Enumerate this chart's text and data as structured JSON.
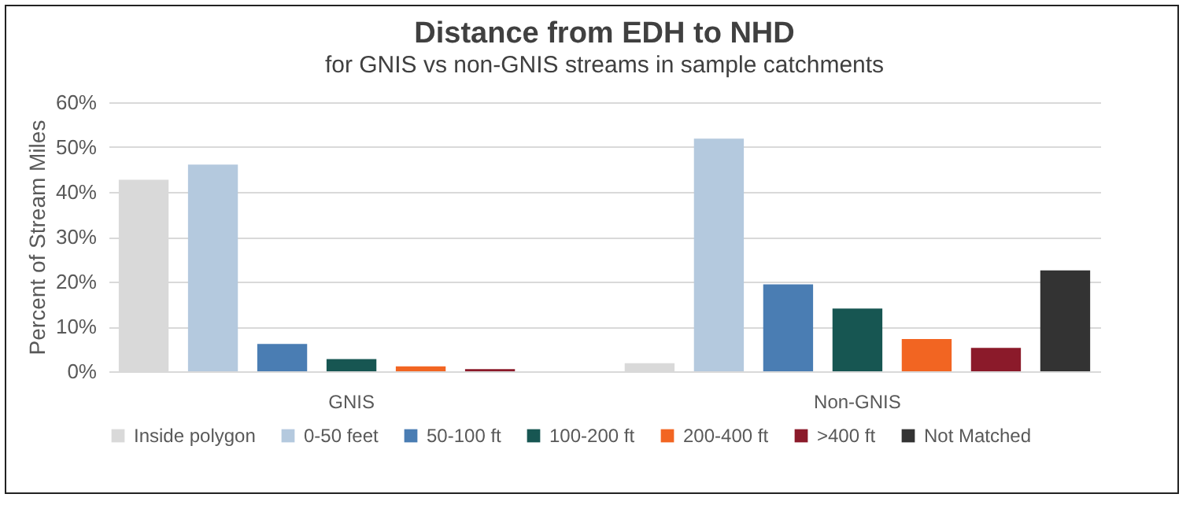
{
  "chart_data": {
    "type": "bar",
    "title": "Distance from EDH to NHD",
    "subtitle": "for GNIS vs non-GNIS streams in sample catchments",
    "ylabel": "Percent of Stream Miles",
    "categories": [
      "GNIS",
      "Non-GNIS"
    ],
    "series": [
      {
        "name": "Inside polygon",
        "color": "#d9d9d9",
        "values": [
          42.7,
          1.8
        ]
      },
      {
        "name": "0-50 feet",
        "color": "#b4c9de",
        "values": [
          46.1,
          51.9
        ]
      },
      {
        "name": "50-100 ft",
        "color": "#4a7db3",
        "values": [
          6.1,
          19.4
        ]
      },
      {
        "name": "100-200 ft",
        "color": "#175652",
        "values": [
          2.7,
          14.0
        ]
      },
      {
        "name": "200-400 ft",
        "color": "#f26522",
        "values": [
          1.1,
          7.2
        ]
      },
      {
        "name": ">400 ft",
        "color": "#8b1a2a",
        "values": [
          0.5,
          5.2
        ]
      },
      {
        "name": "Not Matched",
        "color": "#333333",
        "values": [
          0,
          22.5
        ]
      }
    ],
    "ylim": [
      0,
      60
    ],
    "yticks": [
      {
        "value": 0,
        "label": "0%"
      },
      {
        "value": 10,
        "label": "10%"
      },
      {
        "value": 20,
        "label": "20%"
      },
      {
        "value": 30,
        "label": "30%"
      },
      {
        "value": 40,
        "label": "40%"
      },
      {
        "value": 50,
        "label": "50%"
      },
      {
        "value": 60,
        "label": "60%"
      }
    ],
    "grid": "y",
    "legend": "bottom"
  }
}
